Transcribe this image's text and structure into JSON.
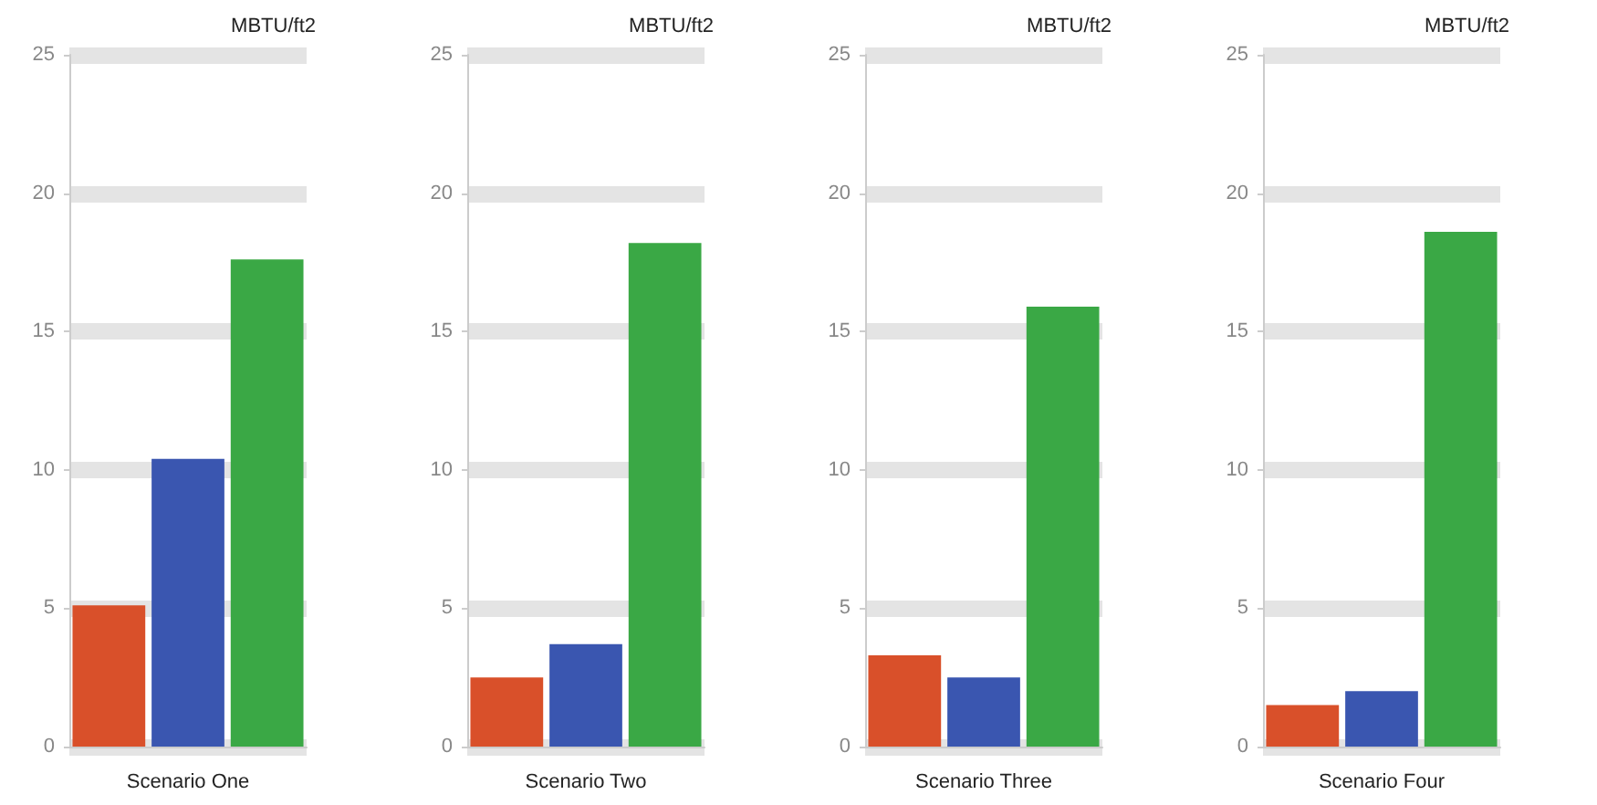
{
  "chart_data": [
    {
      "type": "bar",
      "ylabel": "MBTU/ft2",
      "xlabel": "Scenario One",
      "categories": [
        null,
        null,
        null
      ],
      "values": [
        5.1,
        10.4,
        17.6
      ],
      "colors": [
        "#d9502a",
        "#3a56b0",
        "#3aa845"
      ],
      "ylim": [
        0,
        25
      ],
      "yticks": [
        0,
        5,
        10,
        15,
        20,
        25
      ],
      "grid": "y"
    },
    {
      "type": "bar",
      "ylabel": "MBTU/ft2",
      "xlabel": "Scenario Two",
      "categories": [
        null,
        null,
        null
      ],
      "values": [
        2.5,
        3.7,
        18.2
      ],
      "colors": [
        "#d9502a",
        "#3a56b0",
        "#3aa845"
      ],
      "ylim": [
        0,
        25
      ],
      "yticks": [
        0,
        5,
        10,
        15,
        20,
        25
      ],
      "grid": "y"
    },
    {
      "type": "bar",
      "ylabel": "MBTU/ft2",
      "xlabel": "Scenario Three",
      "categories": [
        null,
        null,
        null
      ],
      "values": [
        3.3,
        2.5,
        15.9
      ],
      "colors": [
        "#d9502a",
        "#3a56b0",
        "#3aa845"
      ],
      "ylim": [
        0,
        25
      ],
      "yticks": [
        0,
        5,
        10,
        15,
        20,
        25
      ],
      "grid": "y"
    },
    {
      "type": "bar",
      "ylabel": "MBTU/ft2",
      "xlabel": "Scenario Four",
      "categories": [
        null,
        null,
        null
      ],
      "values": [
        1.5,
        2.0,
        18.6
      ],
      "colors": [
        "#d9502a",
        "#3a56b0",
        "#3aa845"
      ],
      "ylim": [
        0,
        25
      ],
      "yticks": [
        0,
        5,
        10,
        15,
        20,
        25
      ],
      "grid": "y"
    }
  ]
}
